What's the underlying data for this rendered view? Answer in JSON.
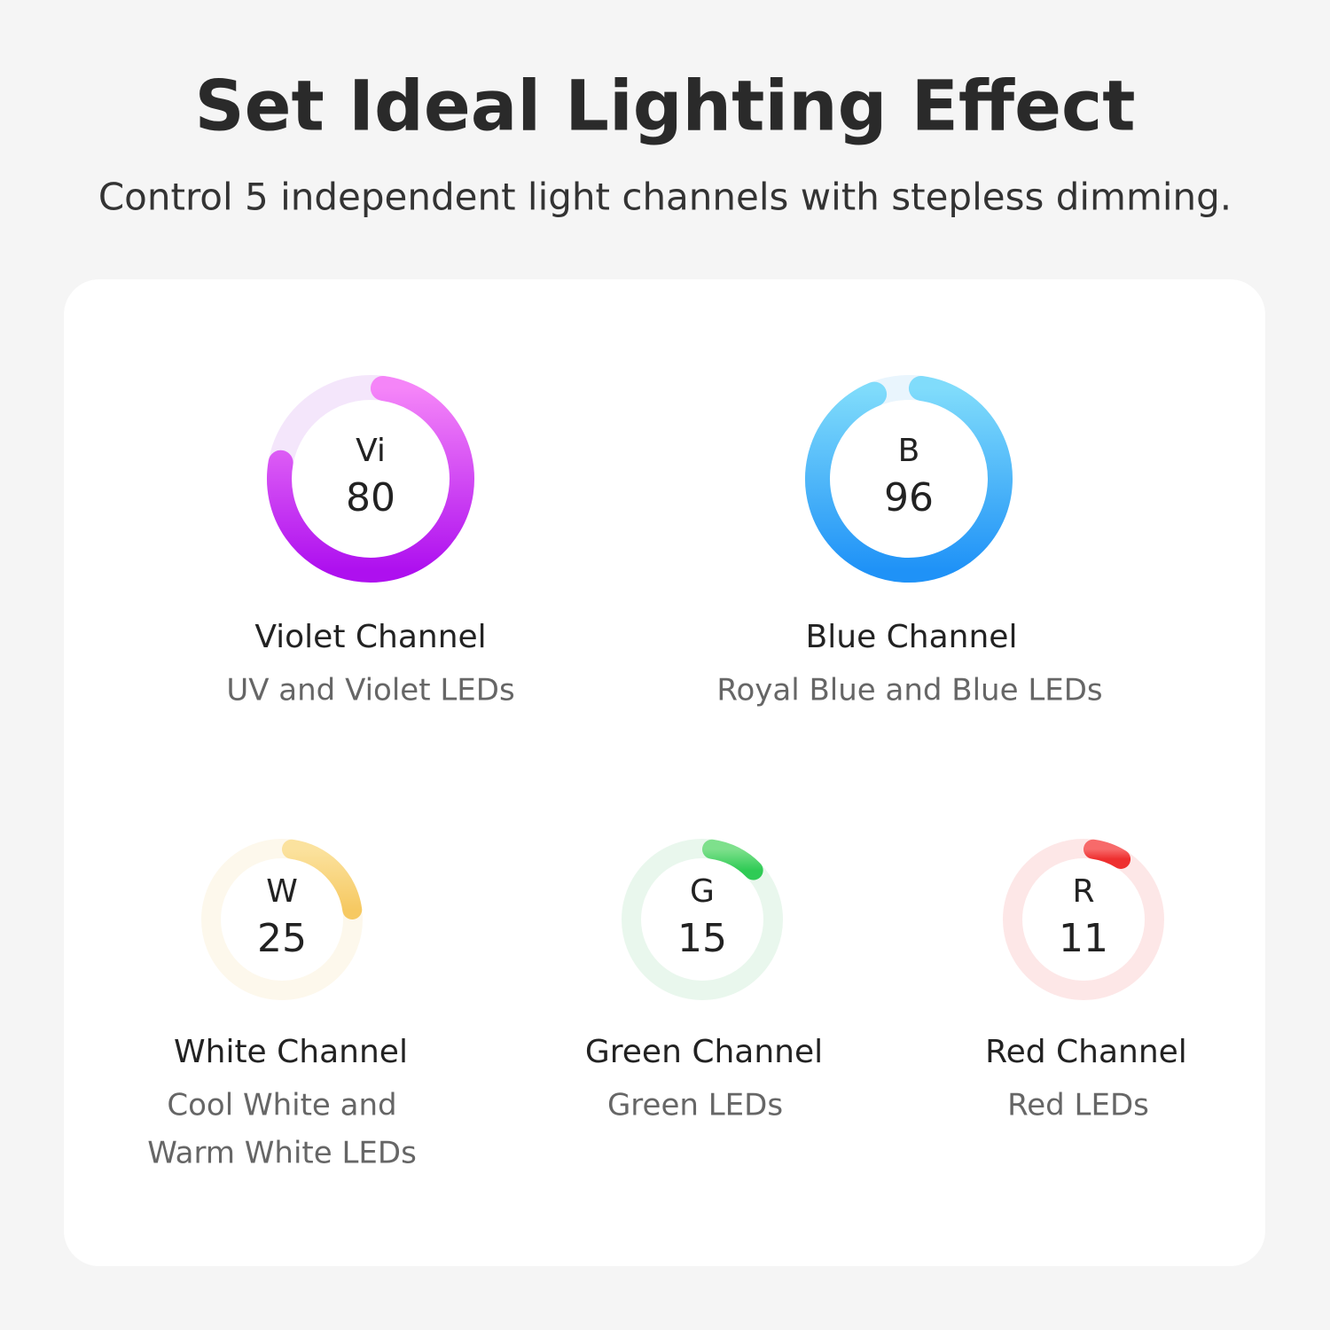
{
  "header": {
    "title": "Set Ideal Lighting Effect",
    "subtitle": "Control 5 independent light channels with stepless dimming."
  },
  "channels": [
    {
      "symbol": "Vi",
      "value": 80,
      "name": "Violet Channel",
      "description": [
        "UV and Violet LEDs"
      ],
      "colors": [
        "#f585f8",
        "#ae10ef"
      ],
      "track": "#f4e6fb"
    },
    {
      "symbol": "B",
      "value": 96,
      "name": "Blue Channel",
      "description": [
        "Royal Blue and Blue LEDs"
      ],
      "colors": [
        "#80dcfb",
        "#1f92f7"
      ],
      "track": "#e9f5fd"
    },
    {
      "symbol": "W",
      "value": 25,
      "name": "White Channel",
      "description": [
        "Cool White and",
        "Warm White LEDs"
      ],
      "colors": [
        "#fbe29e",
        "#f6c962"
      ],
      "track": "#fdf8ec"
    },
    {
      "symbol": "G",
      "value": 15,
      "name": "Green Channel",
      "description": [
        "Green LEDs"
      ],
      "colors": [
        "#7ee08c",
        "#2fcb55"
      ],
      "track": "#e9f7ed"
    },
    {
      "symbol": "R",
      "value": 11,
      "name": "Red Channel",
      "description": [
        "Red LEDs"
      ],
      "colors": [
        "#f76a6a",
        "#ee2f2f"
      ],
      "track": "#fde7e7"
    }
  ]
}
